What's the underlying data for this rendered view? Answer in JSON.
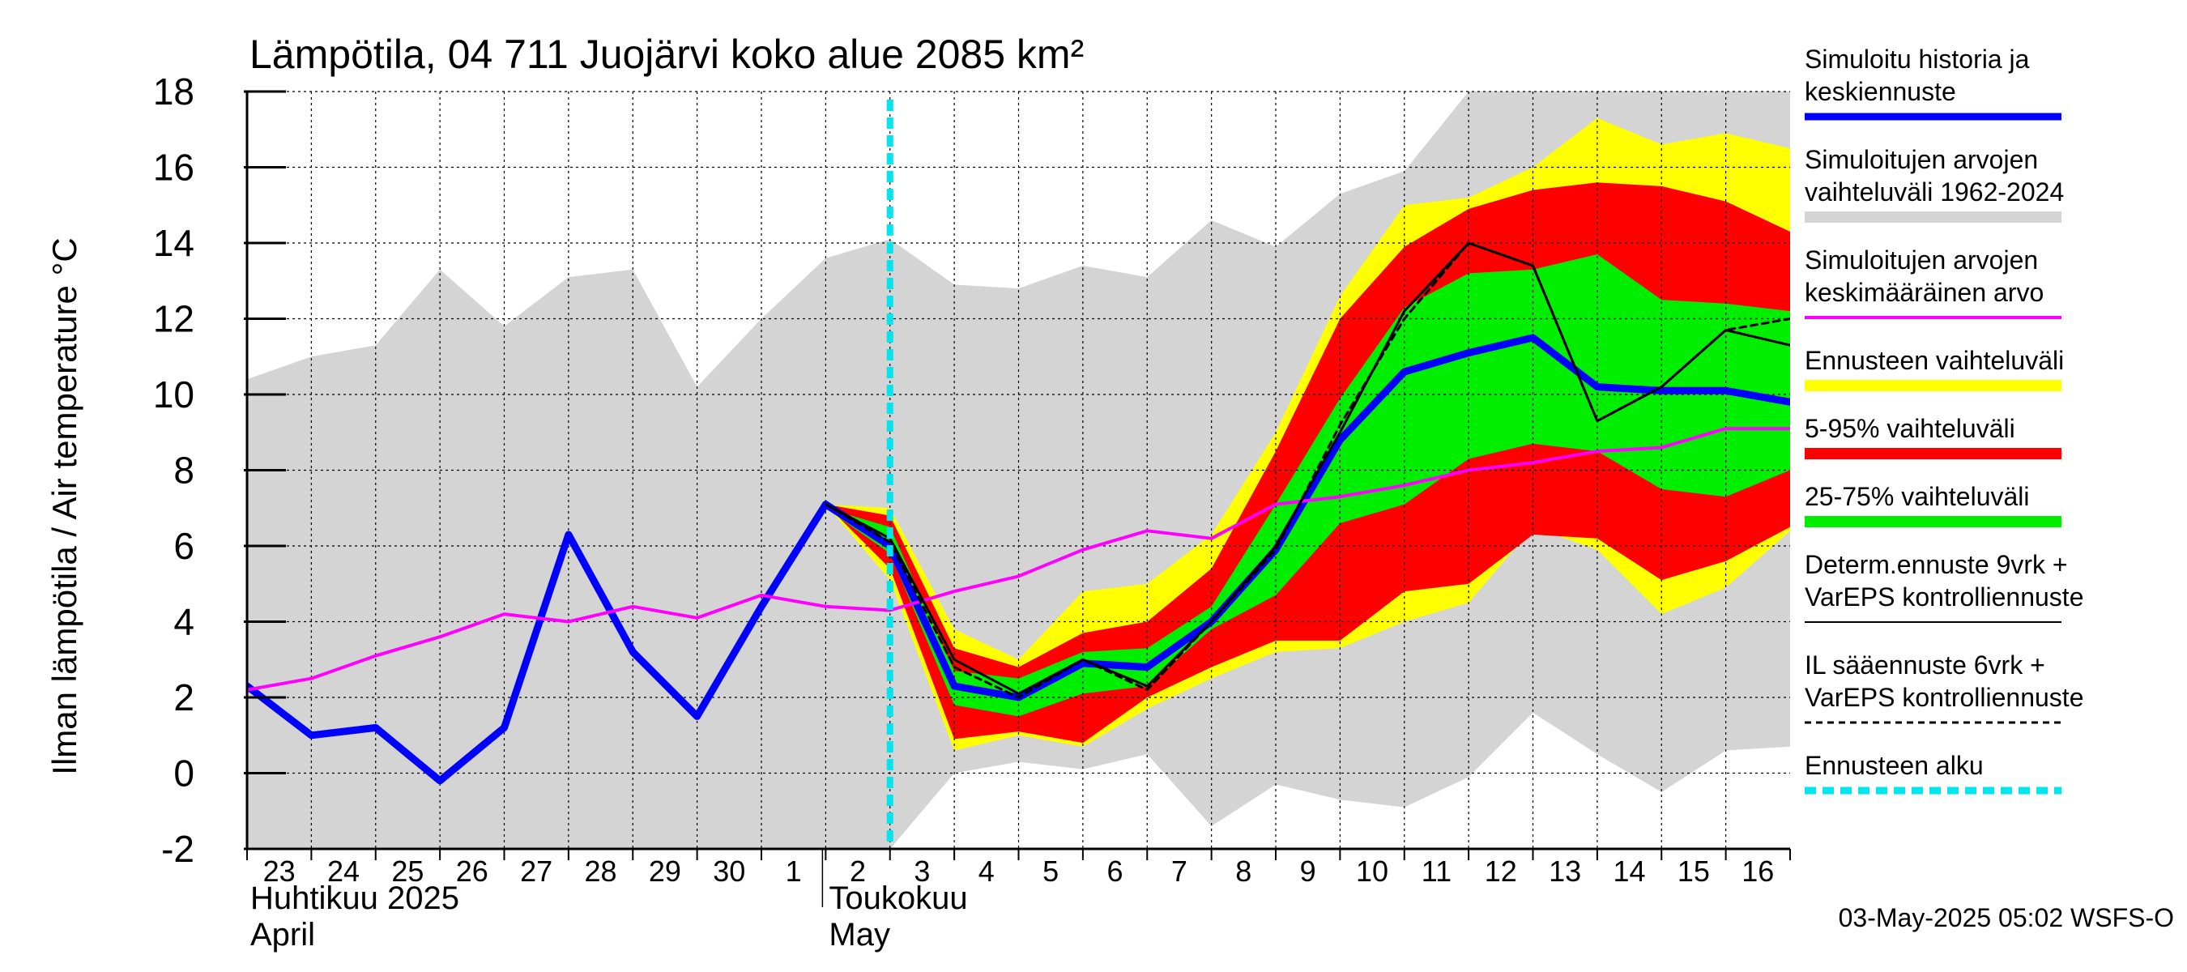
{
  "chart_data": {
    "type": "area",
    "title": "Lämpötila, 04 711 Juojärvi koko alue 2085 km²",
    "ylabel": "Ilman lämpötila / Air temperature   °C",
    "ylim": [
      -2,
      18
    ],
    "yticks": [
      -2,
      0,
      2,
      4,
      6,
      8,
      10,
      12,
      14,
      16,
      18
    ],
    "ytick_labels": [
      "-2",
      "0",
      "2",
      "4",
      "6",
      "8",
      "10",
      "12",
      "14",
      "16",
      "18"
    ],
    "x_days": [
      "23",
      "24",
      "25",
      "26",
      "27",
      "28",
      "29",
      "30",
      "1",
      "2",
      "3",
      "4",
      "5",
      "6",
      "7",
      "8",
      "9",
      "10",
      "11",
      "12",
      "13",
      "14",
      "15",
      "16"
    ],
    "x_start_date": "2025-04-23",
    "months": [
      {
        "fi": "Huhtikuu  2025",
        "en": "April",
        "day_index": 0
      },
      {
        "fi": "Toukokuu",
        "en": "May",
        "day_index": 9
      }
    ],
    "forecast_start_date": "2025-05-03",
    "grid": true,
    "legend_position": "right",
    "footer": "03-May-2025 05:02 WSFS-O",
    "bands": [
      {
        "name": "Simuloitujen arvojen vaihteluväli 1962-2024",
        "color": "#d4d4d4",
        "x": [
          0,
          1,
          2,
          3,
          4,
          5,
          6,
          7,
          8,
          9,
          10,
          11,
          12,
          13,
          14,
          15,
          16,
          17,
          18,
          19,
          20,
          21,
          22,
          23,
          24
        ],
        "upper": [
          10.4,
          11.0,
          11.3,
          13.3,
          11.8,
          13.1,
          13.3,
          10.2,
          12.0,
          13.6,
          14.1,
          12.9,
          12.8,
          13.4,
          13.1,
          14.6,
          13.9,
          15.3,
          15.9,
          18.0,
          18.0,
          18.0,
          18.0,
          18.0,
          18.0
        ],
        "lower": [
          -2,
          -2,
          -2,
          -2,
          -2,
          -2,
          -2,
          -2,
          -2,
          -2,
          -2,
          0.0,
          0.3,
          0.1,
          0.5,
          -1.4,
          -0.3,
          -0.7,
          -0.9,
          -0.1,
          1.6,
          0.5,
          -0.5,
          0.6,
          0.7
        ]
      },
      {
        "name": "Ennusteen vaihteluväli",
        "color": "#ffff00",
        "x": [
          9,
          10,
          11,
          12,
          13,
          14,
          15,
          16,
          17,
          18,
          19,
          20,
          21,
          22,
          23,
          24
        ],
        "upper": [
          7.1,
          7.0,
          3.8,
          3.0,
          4.8,
          5.0,
          6.3,
          9.0,
          12.6,
          15.0,
          15.2,
          16.0,
          17.3,
          16.6,
          16.9,
          16.5
        ],
        "lower": [
          7.1,
          5.1,
          0.6,
          1.0,
          0.7,
          1.7,
          2.5,
          3.2,
          3.3,
          4.0,
          4.5,
          6.5,
          5.9,
          4.2,
          4.9,
          6.4
        ]
      },
      {
        "name": "5-95% vaihteluväli",
        "color": "#ff0000",
        "x": [
          9,
          10,
          11,
          12,
          13,
          14,
          15,
          16,
          17,
          18,
          19,
          20,
          21,
          22,
          23,
          24
        ],
        "upper": [
          7.1,
          6.8,
          3.3,
          2.8,
          3.7,
          4.0,
          5.4,
          8.5,
          12.0,
          13.9,
          14.9,
          15.4,
          15.6,
          15.5,
          15.1,
          14.3
        ],
        "lower": [
          7.1,
          5.4,
          0.9,
          1.1,
          0.8,
          2.0,
          2.8,
          3.5,
          3.5,
          4.8,
          5.0,
          6.3,
          6.2,
          5.1,
          5.6,
          6.5
        ]
      },
      {
        "name": "25-75% vaihteluväli",
        "color": "#00ee00",
        "x": [
          9,
          10,
          11,
          12,
          13,
          14,
          15,
          16,
          17,
          18,
          19,
          20,
          21,
          22,
          23,
          24
        ],
        "upper": [
          7.0,
          6.5,
          2.7,
          2.5,
          3.2,
          3.3,
          4.4,
          7.1,
          9.9,
          12.3,
          13.2,
          13.3,
          13.7,
          12.5,
          12.4,
          12.2
        ],
        "lower": [
          7.0,
          5.8,
          1.8,
          1.5,
          2.1,
          2.3,
          3.8,
          4.7,
          6.6,
          7.1,
          8.3,
          8.7,
          8.5,
          7.5,
          7.3,
          8.0
        ]
      }
    ],
    "series": [
      {
        "name": "Simuloitu historia ja keskiennuste",
        "color": "#0000ff",
        "x": [
          0,
          1,
          2,
          3,
          4,
          5,
          6,
          7,
          8,
          9,
          10,
          11,
          12,
          13,
          14,
          15,
          16,
          17,
          18,
          19,
          20,
          21,
          22,
          23,
          24
        ],
        "values": [
          2.3,
          1.0,
          1.2,
          -0.2,
          1.2,
          6.3,
          3.2,
          1.5,
          4.4,
          7.1,
          6.0,
          2.3,
          2.0,
          2.9,
          2.8,
          4.0,
          5.9,
          8.8,
          10.6,
          11.1,
          11.5,
          10.2,
          10.1,
          10.1,
          9.8
        ]
      },
      {
        "name": "Simuloitujen arvojen keskimääräinen arvo",
        "color": "#ff00ff",
        "x": [
          0,
          1,
          2,
          3,
          4,
          5,
          6,
          7,
          8,
          9,
          10,
          11,
          12,
          13,
          14,
          15,
          16,
          17,
          18,
          19,
          20,
          21,
          22,
          23,
          24
        ],
        "values": [
          2.2,
          2.5,
          3.1,
          3.6,
          4.2,
          4.0,
          4.4,
          4.1,
          4.7,
          4.4,
          4.3,
          4.8,
          5.2,
          5.9,
          6.4,
          6.2,
          7.1,
          7.3,
          7.6,
          8.0,
          8.2,
          8.5,
          8.6,
          9.1,
          9.1
        ]
      },
      {
        "name": "Determ.ennuste 9vrk + VarEPS kontrolliennuste",
        "color": "#000000",
        "x": [
          9,
          10,
          11,
          12,
          13,
          14,
          15,
          16,
          17,
          18,
          19,
          20,
          21,
          22,
          23,
          24
        ],
        "values": [
          7.1,
          6.2,
          3.0,
          2.1,
          3.0,
          2.3,
          4.0,
          6.0,
          9.0,
          12.2,
          14.0,
          13.4,
          9.3,
          10.2,
          11.7,
          11.3
        ]
      },
      {
        "name": "IL sääennuste 6vrk  +  VarEPS kontrolliennuste",
        "color": "#000000",
        "dash": true,
        "x": [
          9,
          10,
          11,
          12,
          13,
          14,
          15,
          16,
          17,
          18,
          19,
          20,
          21,
          22,
          23,
          24
        ],
        "values": [
          7.1,
          6.1,
          2.8,
          2.0,
          3.0,
          2.2,
          4.0,
          5.9,
          9.2,
          12.0,
          14.0,
          13.4,
          9.3,
          10.2,
          11.7,
          12.0
        ]
      }
    ],
    "forecast_start_marker": {
      "name": "Ennusteen alku",
      "color": "#00e5ee",
      "x": 10
    },
    "legend": [
      {
        "lines": [
          "Simuloitu historia ja",
          "keskiennuste"
        ],
        "color": "#0000ff",
        "style": "thick"
      },
      {
        "lines": [
          "Simuloitujen arvojen",
          "vaihteluväli 1962-2024"
        ],
        "color": "#d4d4d4",
        "style": "band"
      },
      {
        "lines": [
          "Simuloitujen arvojen",
          "keskimääräinen arvo"
        ],
        "color": "#ff00ff",
        "style": "medium"
      },
      {
        "lines": [
          "Ennusteen vaihteluväli"
        ],
        "color": "#ffff00",
        "style": "band"
      },
      {
        "lines": [
          "5-95% vaihteluväli"
        ],
        "color": "#ff0000",
        "style": "band"
      },
      {
        "lines": [
          "25-75% vaihteluväli"
        ],
        "color": "#00ee00",
        "style": "band"
      },
      {
        "lines": [
          "Determ.ennuste 9vrk +",
          "VarEPS kontrolliennuste"
        ],
        "color": "#000000",
        "style": "thin"
      },
      {
        "lines": [
          "IL sääennuste 6vrk  +",
          "  VarEPS kontrolliennuste"
        ],
        "color": "#000000",
        "style": "dashed"
      },
      {
        "lines": [
          "Ennusteen alku"
        ],
        "color": "#00e5ee",
        "style": "cyan-dashed"
      }
    ]
  }
}
